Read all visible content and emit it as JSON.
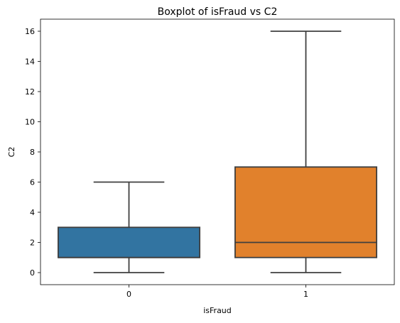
{
  "chart_data": {
    "type": "boxplot",
    "title": "Boxplot of isFraud vs C2",
    "xlabel": "isFraud",
    "ylabel": "C2",
    "categories": [
      "0",
      "1"
    ],
    "ylim": [
      -0.8,
      16.8
    ],
    "yticks": [
      0,
      2,
      4,
      6,
      8,
      10,
      12,
      14,
      16
    ],
    "grid": false,
    "boxes": [
      {
        "category": "0",
        "whisker_low": 0,
        "q1": 1,
        "median": 1,
        "q3": 3,
        "whisker_high": 6,
        "color": "#3274a1"
      },
      {
        "category": "1",
        "whisker_low": 0,
        "q1": 1,
        "median": 2,
        "q3": 7,
        "whisker_high": 16,
        "color": "#e1812c"
      }
    ]
  }
}
